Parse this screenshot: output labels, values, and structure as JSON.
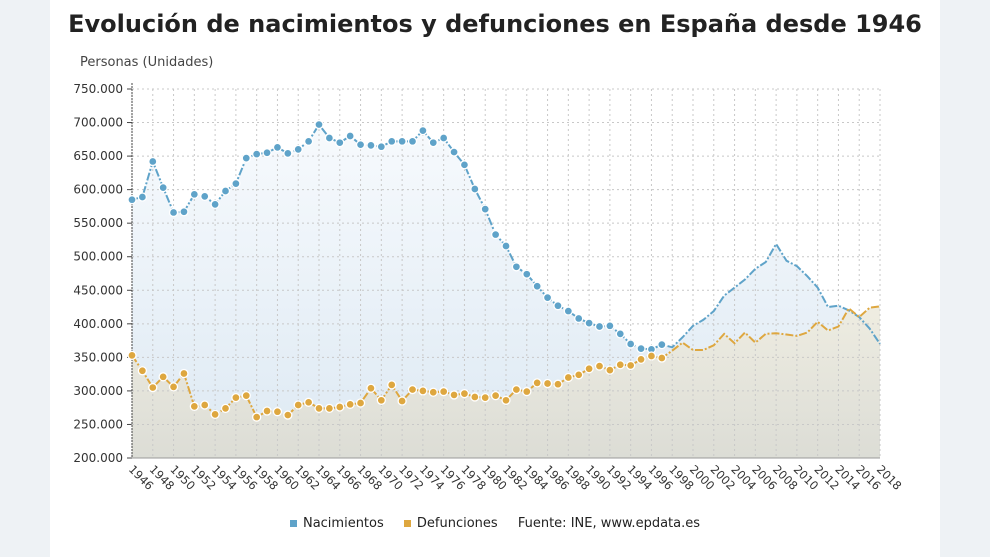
{
  "chart_data": {
    "type": "area",
    "title": "Evolución de nacimientos y defunciones en España desde 1946",
    "ylabel": "Personas (Unidades)",
    "xlabel": "",
    "ylim": [
      200000,
      750000
    ],
    "yticks": [
      "200.000",
      "250.000",
      "300.000",
      "350.000",
      "400.000",
      "450.000",
      "500.000",
      "550.000",
      "600.000",
      "650.000",
      "700.000",
      "750.000"
    ],
    "xlim": [
      1946,
      2018
    ],
    "grid": true,
    "legend_position": "bottom",
    "source": "Fuente: INE, www.epdata.es",
    "x": [
      1946,
      1947,
      1948,
      1949,
      1950,
      1951,
      1952,
      1953,
      1954,
      1955,
      1956,
      1957,
      1958,
      1959,
      1960,
      1961,
      1962,
      1963,
      1964,
      1965,
      1966,
      1967,
      1968,
      1969,
      1970,
      1971,
      1972,
      1973,
      1974,
      1975,
      1976,
      1977,
      1978,
      1979,
      1980,
      1981,
      1982,
      1983,
      1984,
      1985,
      1986,
      1987,
      1988,
      1989,
      1990,
      1991,
      1992,
      1993,
      1994,
      1995,
      1996,
      1997,
      1998,
      1999,
      2000,
      2001,
      2002,
      2003,
      2004,
      2005,
      2006,
      2007,
      2008,
      2009,
      2010,
      2011,
      2012,
      2013,
      2014,
      2015,
      2016,
      2017,
      2018
    ],
    "series": [
      {
        "name": "Nacimientos",
        "color": "#5fa3c9",
        "values": [
          585000,
          589000,
          642000,
          603000,
          566000,
          567000,
          593000,
          590000,
          578000,
          598000,
          609000,
          647000,
          653000,
          655000,
          663000,
          654000,
          660000,
          672000,
          697000,
          677000,
          670000,
          680000,
          667000,
          666000,
          664000,
          672000,
          672000,
          672000,
          688000,
          670000,
          677000,
          656000,
          637000,
          601000,
          571000,
          533000,
          516000,
          485000,
          474000,
          456000,
          439000,
          427000,
          419000,
          408000,
          401000,
          396000,
          397000,
          385000,
          370000,
          363000,
          362000,
          369000,
          365000,
          380000,
          397000,
          406000,
          419000,
          442000,
          454000,
          466000,
          482000,
          492000,
          519000,
          494000,
          486000,
          471000,
          454000,
          425000,
          427000,
          420000,
          410000,
          393000,
          370000
        ]
      },
      {
        "name": "Defunciones",
        "color": "#dea73f",
        "values": [
          353000,
          330000,
          305000,
          321000,
          306000,
          326000,
          277000,
          279000,
          265000,
          274000,
          290000,
          293000,
          261000,
          270000,
          269000,
          264000,
          279000,
          283000,
          274000,
          274000,
          276000,
          280000,
          282000,
          304000,
          286000,
          309000,
          285000,
          302000,
          300000,
          298000,
          299000,
          294000,
          296000,
          291000,
          290000,
          293000,
          286000,
          302000,
          299000,
          312000,
          311000,
          310000,
          320000,
          324000,
          333000,
          337000,
          331000,
          339000,
          338000,
          347000,
          352000,
          349000,
          360000,
          372000,
          361000,
          361000,
          368000,
          385000,
          371000,
          387000,
          372000,
          385000,
          386000,
          384000,
          382000,
          387000,
          403000,
          390000,
          396000,
          423000,
          410000,
          424000,
          426000
        ]
      }
    ]
  }
}
